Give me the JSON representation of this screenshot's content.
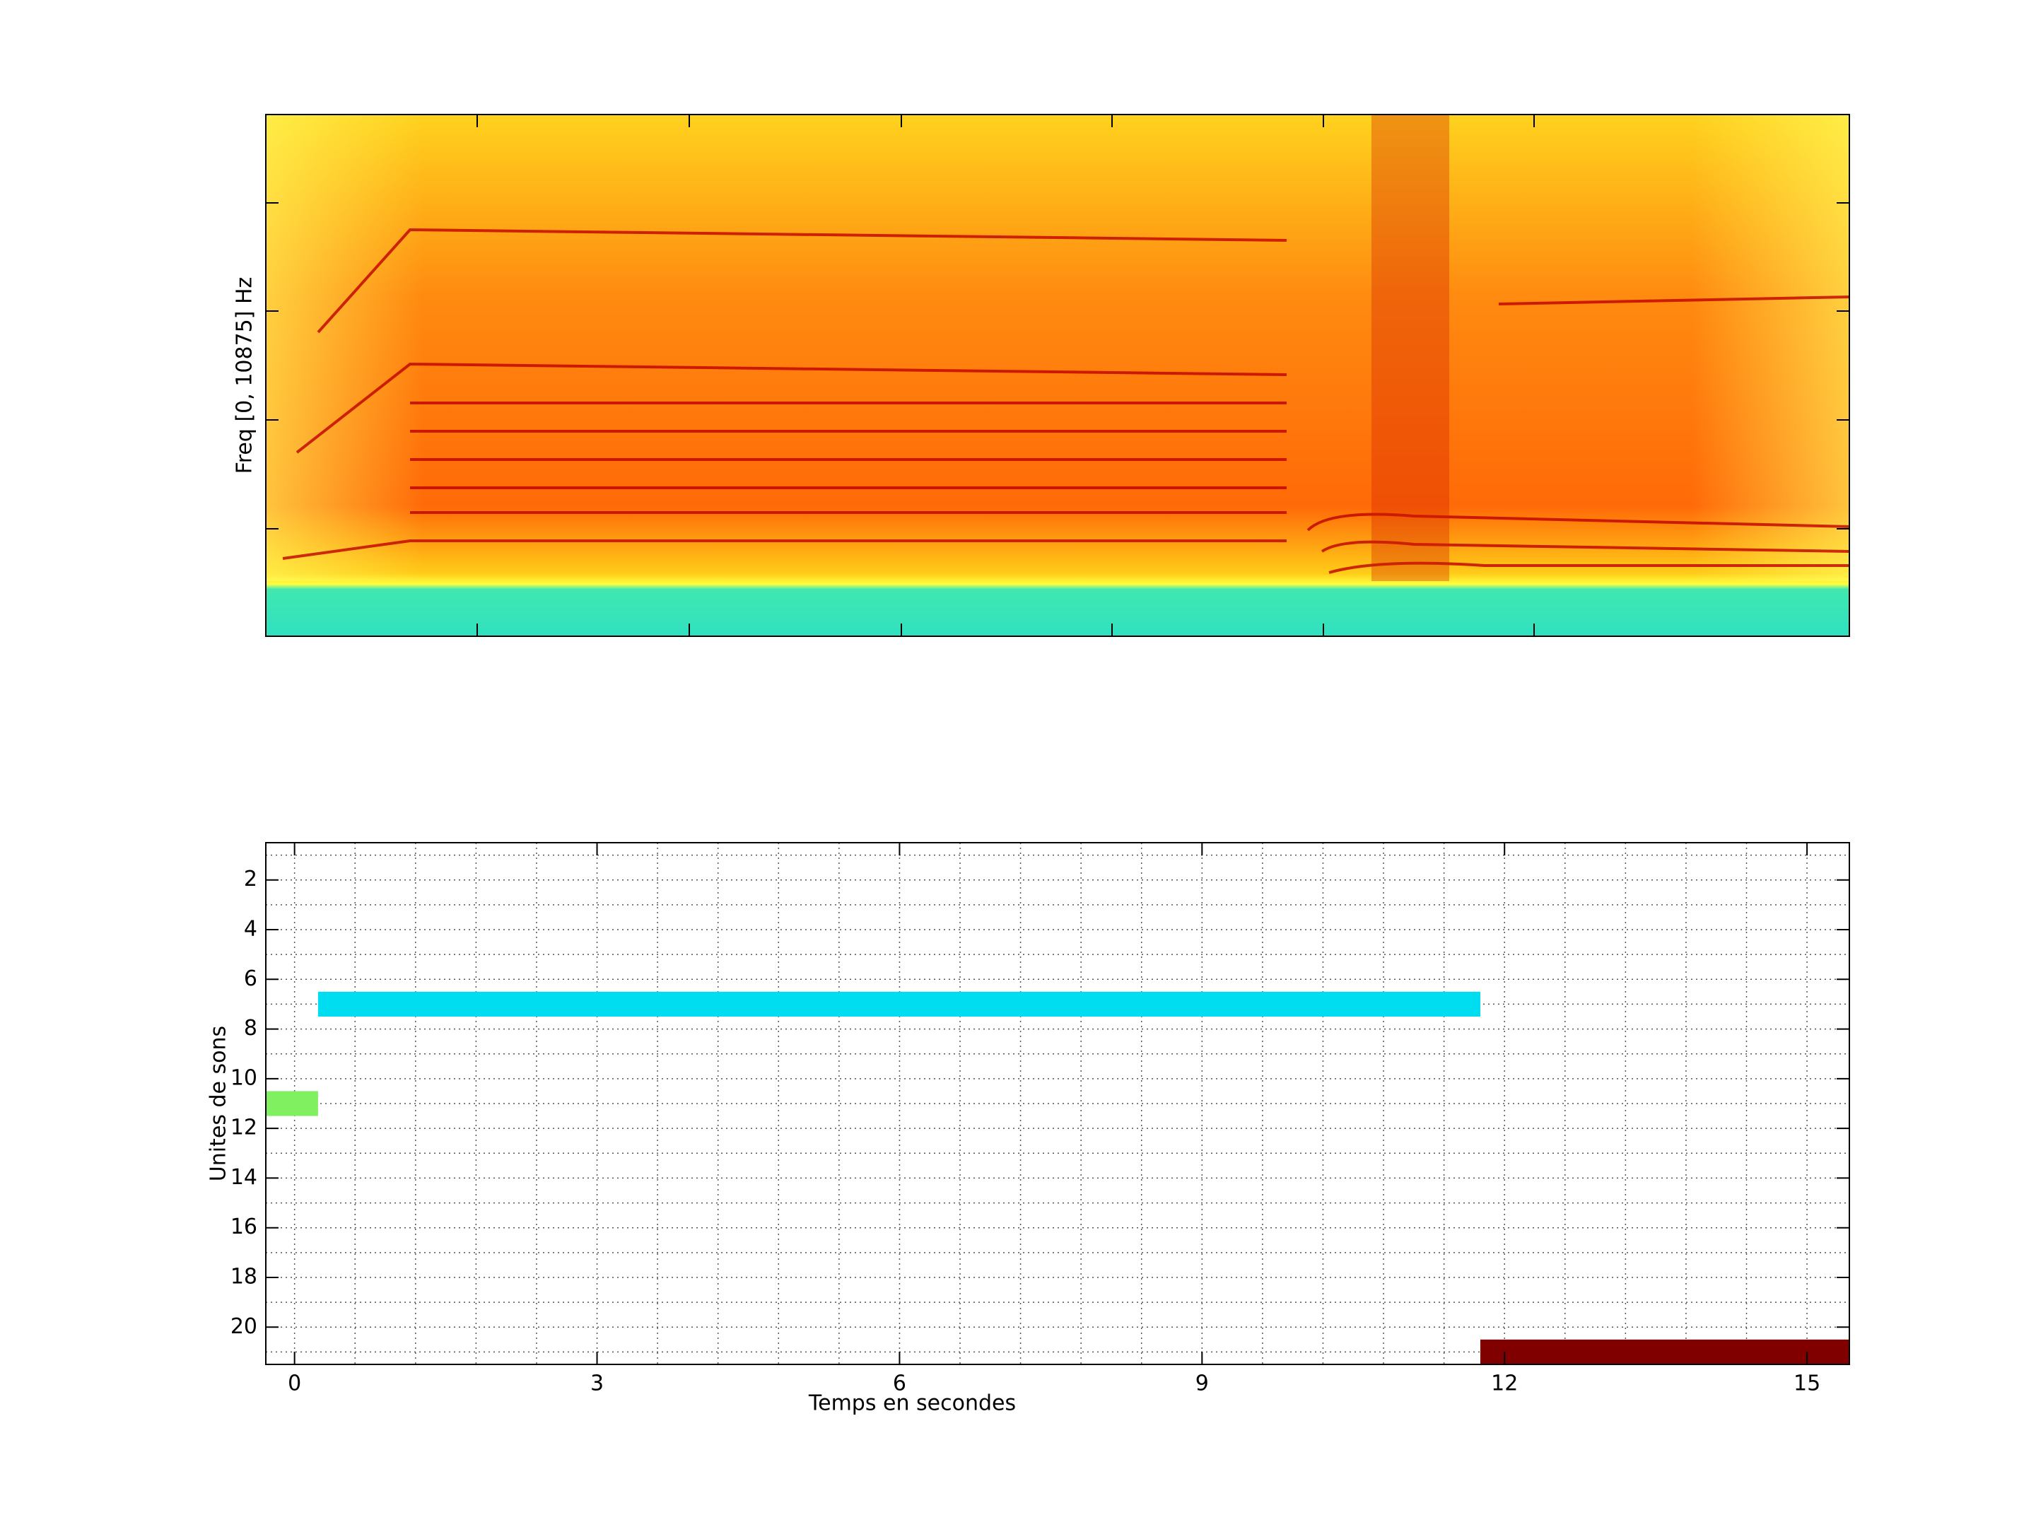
{
  "chart_data": [
    {
      "type": "spectrogram",
      "ylabel": "Freq [0, 10875] Hz"
    },
    {
      "type": "timeline",
      "xlabel": "Temps en secondes",
      "ylabel": "Unites de sons",
      "xlim": [
        -0.285,
        15.42
      ],
      "xticks": [
        0,
        3,
        6,
        9,
        12,
        15
      ],
      "xminorticks": [
        0.6,
        1.2,
        1.8,
        2.4,
        3.6,
        4.2,
        4.8,
        5.4,
        6.6,
        7.2,
        7.8,
        8.4,
        9.6,
        10.2,
        10.8,
        11.4,
        12.6,
        13.2,
        13.8,
        14.4
      ],
      "ylim": [
        0.5,
        21.5
      ],
      "yticks": [
        2,
        4,
        6,
        8,
        10,
        12,
        14,
        16,
        18,
        20
      ],
      "yminorticks": [
        1,
        3,
        5,
        7,
        9,
        11,
        13,
        15,
        17,
        19,
        21
      ],
      "y_reversed": true,
      "grid": true,
      "segments": [
        {
          "row": 11,
          "start": -0.285,
          "end": 0.233,
          "color": "#80f060"
        },
        {
          "row": 7,
          "start": 0.233,
          "end": 11.76,
          "color": "#00dcf0"
        },
        {
          "row": 21,
          "start": 11.76,
          "end": 15.42,
          "color": "#800000"
        }
      ]
    }
  ]
}
